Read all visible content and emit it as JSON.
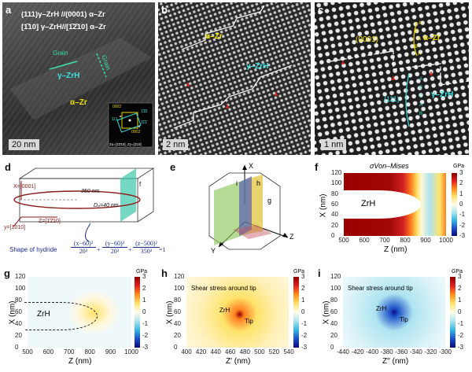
{
  "panels": {
    "a": {
      "label": "a",
      "rel1": "(111)γ–ZrH //(0001) α–Zr",
      "rel2": "[1̄10] γ–ZrH//[1̄2̄10] α–Zr",
      "gamma_label": "γ–ZrH",
      "alpha_label": "α–Zr",
      "a1": "Grain",
      "a2": "Grain",
      "scalebar": "20 nm",
      "fft_za": "Zα=[1̄2̄10], Zγ=[1̄10]",
      "fft_spots": [
        "0002",
        "111",
        "1̄1̄0",
        "11̄1̄",
        "0002"
      ]
    },
    "b": {
      "label": "b",
      "alpha_label": "α–Zr",
      "gamma_label": "γ–ZrH",
      "scalebar": "2 nm"
    },
    "c": {
      "label": "c",
      "plane_label": "(0001)",
      "seq": [
        "A",
        "B",
        "A",
        "B",
        "A"
      ],
      "alpha_label": "α–Zr",
      "seq2": [
        "A",
        "B",
        "C",
        "A",
        "B"
      ],
      "plane2": "(111)",
      "gamma_label": "γ–ZrH",
      "scalebar": "1 nm"
    },
    "d": {
      "label": "d",
      "x_axis": "X=[0001]",
      "z_axis": "Z=[1̄2̄10]",
      "y_axis": "y=[1̄010]",
      "length": "350 nm",
      "diameter": "Dₚ=40 nm",
      "plane_f": "f",
      "shape_text": "Shape of hydride",
      "eq1_num": "(x−60)²",
      "eq1_den": "20²",
      "eq2_num": "(y−60)²",
      "eq2_den": "20²",
      "eq3_num": "(z−500)²",
      "eq3_den": "350²",
      "eq_rhs": "=1"
    },
    "e": {
      "label": "e",
      "x": "X",
      "y": "Y",
      "z": "Z",
      "h": "h",
      "i": "i",
      "g": "g"
    },
    "f": {
      "label": "f",
      "title": "σVon–Mises",
      "unit": "GPa",
      "inner": "ZrH",
      "xlabel": "Z (nm)",
      "ylabel": "X (nm)",
      "xticks": [
        "500",
        "600",
        "700",
        "800",
        "900",
        "1000"
      ],
      "yticks": [
        "120",
        "100",
        "80",
        "60",
        "40",
        "20",
        "0"
      ],
      "cticks": [
        "3",
        "2",
        "1",
        "0",
        "-1",
        "-2",
        "-3"
      ]
    },
    "g": {
      "label": "g",
      "unit": "GPa",
      "inner": "ZrH",
      "xlabel": "Z (nm)",
      "ylabel": "X (nm)",
      "xticks": [
        "500",
        "600",
        "700",
        "800",
        "900",
        "1000"
      ],
      "yticks": [
        "120",
        "100",
        "80",
        "60",
        "40",
        "20",
        "0"
      ],
      "cticks": [
        "3",
        "2",
        "1",
        "0",
        "-1",
        "-2",
        "-3"
      ]
    },
    "h": {
      "label": "h",
      "unit": "GPa",
      "title": "Shear stress around tip",
      "zrh": "ZrH",
      "tip": "Tip",
      "xlabel": "Z′ (nm)",
      "ylabel": "X (nm)",
      "xticks": [
        "400",
        "420",
        "440",
        "460",
        "480",
        "500",
        "520",
        "540"
      ],
      "yticks": [
        "120",
        "100",
        "80",
        "60",
        "40",
        "20",
        "0"
      ],
      "cticks": [
        "3",
        "2",
        "1",
        "0",
        "-1",
        "-2",
        "-3"
      ]
    },
    "i": {
      "label": "i",
      "unit": "GPa",
      "title": "Shear stress around tip",
      "zrh": "ZrH",
      "tip": "Tip",
      "xlabel": "Z′′ (nm)",
      "ylabel": "X (nm)",
      "xticks": [
        "-440",
        "-420",
        "-400",
        "-380",
        "-360",
        "-340",
        "-320",
        "-300"
      ],
      "yticks": [
        "120",
        "100",
        "80",
        "60",
        "40",
        "20",
        "0"
      ],
      "cticks": [
        "3",
        "2",
        "1",
        "0",
        "-1",
        "-2",
        "-3"
      ]
    }
  }
}
